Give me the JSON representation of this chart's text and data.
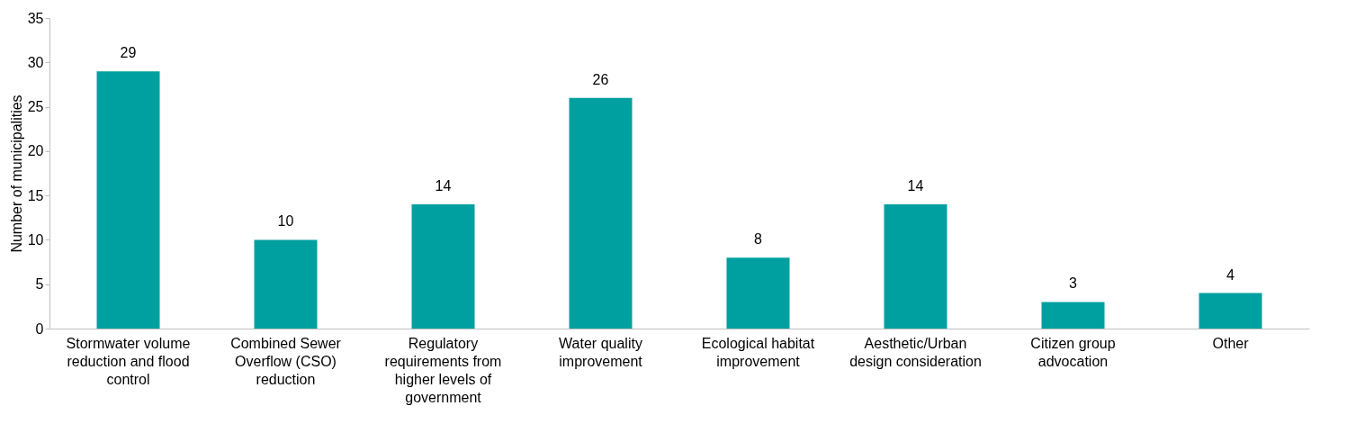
{
  "chart_data": {
    "type": "bar",
    "ylabel": "Number of municipalities",
    "categories": [
      "Stormwater volume reduction and flood control",
      "Combined Sewer Overflow (CSO) reduction",
      "Regulatory requirements from higher levels of government",
      "Water quality improvement",
      "Ecological habitat improvement",
      "Aesthetic/Urban design consideration",
      "Citizen group advocation",
      "Other"
    ],
    "values": [
      29,
      10,
      14,
      26,
      8,
      14,
      3,
      4
    ],
    "color": "#00a0a0",
    "ylim": [
      0,
      35
    ],
    "yticks": [
      0,
      5,
      10,
      15,
      20,
      25,
      30,
      35
    ],
    "grid": false,
    "data_labels": true
  }
}
